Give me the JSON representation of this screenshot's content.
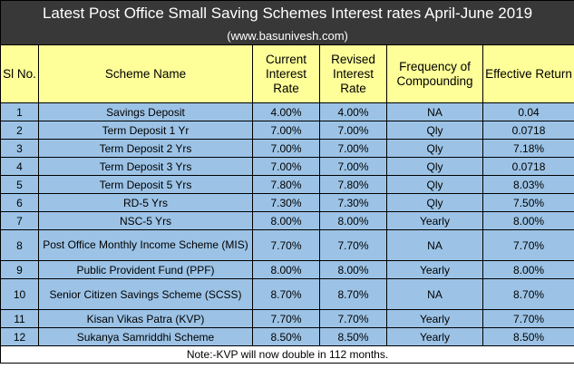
{
  "title": "Latest Post Office Small Saving Schemes Interest rates April-June 2019",
  "subtitle": "(www.basunivesh.com)",
  "headers": {
    "sl": "Sl No.",
    "scheme": "Scheme Name",
    "current": "Current Interest Rate",
    "revised": "Revised Interest Rate",
    "frequency": "Frequency of Compounding",
    "effective": "Effective Return"
  },
  "rows": [
    {
      "sl": "1",
      "scheme": "Savings Deposit",
      "current": "4.00%",
      "revised": "4.00%",
      "frequency": "NA",
      "effective": "0.04"
    },
    {
      "sl": "2",
      "scheme": "Term Deposit 1 Yr",
      "current": "7.00%",
      "revised": "7.00%",
      "frequency": "Qly",
      "effective": "0.0718"
    },
    {
      "sl": "3",
      "scheme": "Term Deposit 2 Yrs",
      "current": "7.00%",
      "revised": "7.00%",
      "frequency": "Qly",
      "effective": "7.18%"
    },
    {
      "sl": "4",
      "scheme": "Term Deposit 3 Yrs",
      "current": "7.00%",
      "revised": "7.00%",
      "frequency": "Qly",
      "effective": "0.0718"
    },
    {
      "sl": "5",
      "scheme": "Term Deposit 5 Yrs",
      "current": "7.80%",
      "revised": "7.80%",
      "frequency": "Qly",
      "effective": "8.03%"
    },
    {
      "sl": "6",
      "scheme": "RD-5 Yrs",
      "current": "7.30%",
      "revised": "7.30%",
      "frequency": "Qly",
      "effective": "7.50%"
    },
    {
      "sl": "7",
      "scheme": "NSC-5 Yrs",
      "current": "8.00%",
      "revised": "8.00%",
      "frequency": "Yearly",
      "effective": "8.00%"
    },
    {
      "sl": "8",
      "scheme": "Post Office Monthly Income Scheme (MIS)",
      "current": "7.70%",
      "revised": "7.70%",
      "frequency": "NA",
      "effective": "7.70%"
    },
    {
      "sl": "9",
      "scheme": "Public Provident Fund (PPF)",
      "current": "8.00%",
      "revised": "8.00%",
      "frequency": "Yearly",
      "effective": "8.00%"
    },
    {
      "sl": "10",
      "scheme": "Senior Citizen Savings Scheme (SCSS)",
      "current": "8.70%",
      "revised": "8.70%",
      "frequency": "NA",
      "effective": "8.70%"
    },
    {
      "sl": "11",
      "scheme": "Kisan Vikas Patra (KVP)",
      "current": "7.70%",
      "revised": "7.70%",
      "frequency": "Yearly",
      "effective": "7.70%"
    },
    {
      "sl": "12",
      "scheme": "Sukanya Samriddhi Scheme",
      "current": "8.50%",
      "revised": "8.50%",
      "frequency": "Yearly",
      "effective": "8.50%"
    }
  ],
  "note": "Note:-KVP will now double in 112 months.",
  "colors": {
    "title_bg": "#383838",
    "header_bg": "#ffff99",
    "row_bg": "#9cc3e6"
  }
}
